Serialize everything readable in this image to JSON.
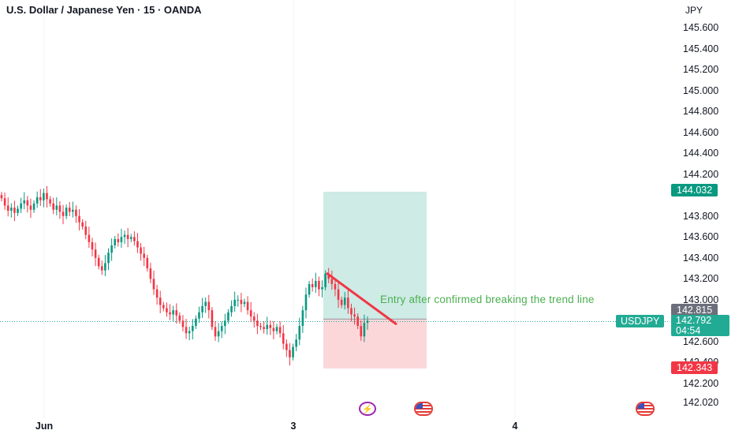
{
  "header": {
    "title": "U.S. Dollar / Japanese Yen · 15 · OANDA",
    "currency": "JPY"
  },
  "price_axis": {
    "ticks": [
      "145.600",
      "145.400",
      "145.200",
      "145.000",
      "144.800",
      "144.600",
      "144.400",
      "144.200",
      "143.800",
      "143.600",
      "143.400",
      "143.200",
      "143.000",
      "142.600",
      "142.400",
      "142.200",
      "142.020"
    ]
  },
  "time_axis": {
    "labels": [
      "Jun",
      "3",
      "4"
    ]
  },
  "position": {
    "target_price": "144.032",
    "entry_price": "142.815",
    "stop_price": "142.343",
    "target_color": "#089981",
    "stop_color": "#f23645"
  },
  "last_price": {
    "symbol": "USDJPY",
    "price": "142.792",
    "countdown": "04:54"
  },
  "annotation": {
    "text": "Entry after confirmed breaking the trend line"
  },
  "events": [
    {
      "name": "flash-event-icon",
      "glyph": "⚡"
    },
    {
      "name": "us-flag-event-icon"
    },
    {
      "name": "us-flag-event-icon"
    }
  ],
  "colors": {
    "up_candle": "#089981",
    "down_candle": "#f23645",
    "trend_line": "#f23645",
    "annotation": "#4caf50"
  },
  "chart_data": {
    "type": "candlestick",
    "symbol": "USDJPY",
    "interval": "15",
    "y_range": [
      142.02,
      145.6
    ],
    "candles_close_path": [
      143.97,
      143.9,
      143.85,
      143.88,
      143.83,
      143.87,
      143.92,
      143.95,
      143.9,
      143.86,
      143.92,
      143.98,
      143.95,
      144.02,
      143.96,
      143.92,
      143.86,
      143.9,
      143.84,
      143.8,
      143.88,
      143.84,
      143.86,
      143.8,
      143.74,
      143.7,
      143.62,
      143.55,
      143.48,
      143.4,
      143.32,
      143.28,
      143.35,
      143.45,
      143.52,
      143.58,
      143.55,
      143.6,
      143.62,
      143.58,
      143.6,
      143.56,
      143.5,
      143.44,
      143.4,
      143.3,
      143.2,
      143.1,
      143.02,
      142.95,
      142.92,
      142.88,
      142.86,
      142.9,
      142.85,
      142.8,
      142.74,
      142.68,
      142.7,
      142.75,
      142.82,
      142.88,
      142.94,
      142.98,
      142.9,
      142.74,
      142.65,
      142.7,
      142.75,
      142.8,
      142.88,
      142.94,
      143.0,
      143.0,
      142.96,
      142.98,
      142.9,
      142.84,
      142.8,
      142.75,
      142.74,
      142.72,
      142.76,
      142.73,
      142.7,
      142.74,
      142.68,
      142.58,
      142.52,
      142.45,
      142.55,
      142.62,
      142.75,
      142.9,
      143.05,
      143.15,
      143.12,
      143.18,
      143.1,
      143.12,
      143.25,
      143.2,
      143.15,
      143.1,
      143.0,
      142.95,
      143.02,
      142.92,
      142.86,
      142.84,
      142.75,
      142.65,
      142.78,
      142.8
    ]
  }
}
